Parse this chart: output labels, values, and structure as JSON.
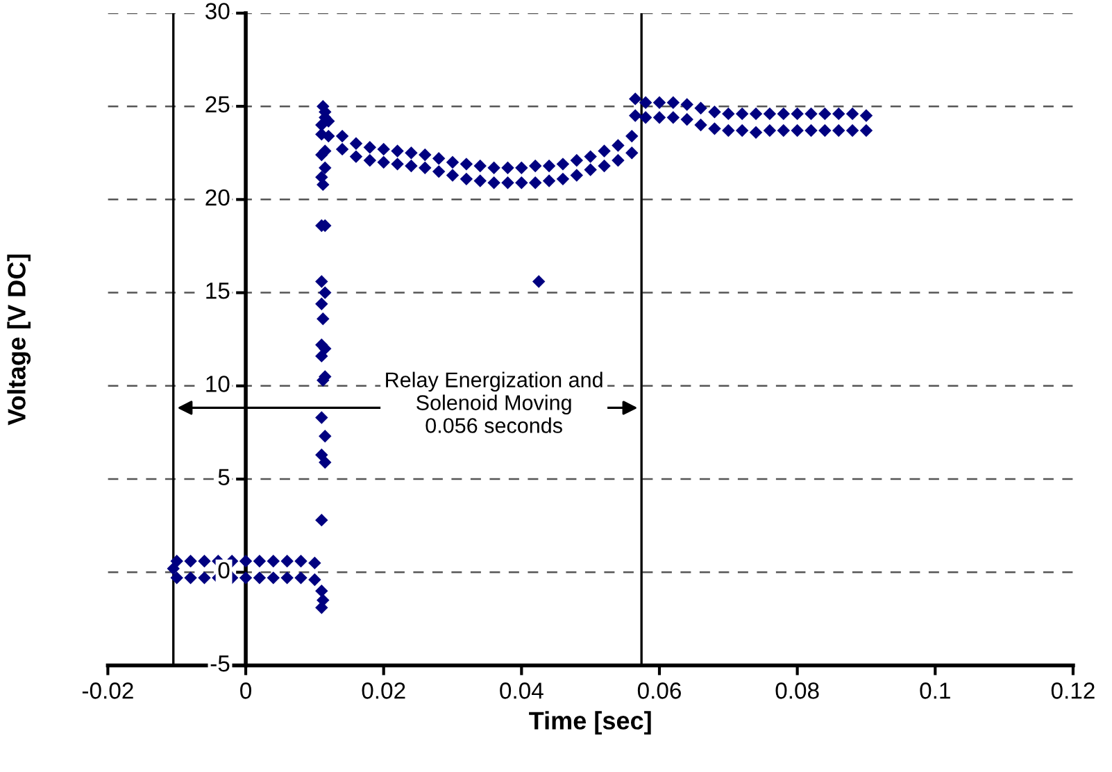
{
  "chart_data": {
    "type": "scatter",
    "xlabel": "Time [sec]",
    "ylabel": "Voltage [V DC]",
    "xlim": [
      -0.02,
      0.12
    ],
    "xticks": [
      -0.02,
      0,
      0.02,
      0.04,
      0.06,
      0.08,
      0.1,
      0.12
    ],
    "ylim": [
      -5,
      30
    ],
    "yticks": [
      -5,
      0,
      5,
      10,
      15,
      20,
      25,
      30
    ],
    "grid": "y",
    "marker": "diamond",
    "ref_lines": [
      {
        "axis": "x",
        "value": -0.0105,
        "color": "#000000"
      },
      {
        "axis": "x",
        "value": 0.0574,
        "color": "#000000"
      }
    ],
    "annotations": [
      "Relay Energization and\nSolenoid Moving\n0.056 seconds"
    ],
    "series": [
      {
        "color": "#000080",
        "x": [
          -0.0105,
          -0.01,
          -0.01,
          -0.008,
          -0.008,
          -0.006,
          -0.006,
          -0.004,
          -0.004,
          -0.002,
          -0.002,
          0,
          0,
          0.002,
          0.002,
          0.004,
          0.004,
          0.006,
          0.006,
          0.008,
          0.008,
          0.01,
          0.01,
          0.011,
          0.011,
          0.0112,
          0.011,
          0.0115,
          0.011,
          0.0115,
          0.011,
          0.0112,
          0.0115,
          0.011,
          0.0115,
          0.011,
          0.0112,
          0.011,
          0.0115,
          0.011,
          0.0115,
          0.011,
          0.0112,
          0.011,
          0.0115,
          0.011,
          0.0115,
          0.011,
          0.0115,
          0.0112,
          0.0115,
          0.011,
          0.012,
          0.012,
          0.014,
          0.014,
          0.016,
          0.016,
          0.018,
          0.018,
          0.02,
          0.02,
          0.022,
          0.022,
          0.024,
          0.024,
          0.026,
          0.026,
          0.028,
          0.028,
          0.03,
          0.03,
          0.032,
          0.032,
          0.034,
          0.034,
          0.036,
          0.036,
          0.038,
          0.038,
          0.04,
          0.04,
          0.0425,
          0.042,
          0.042,
          0.044,
          0.044,
          0.046,
          0.046,
          0.048,
          0.048,
          0.05,
          0.05,
          0.052,
          0.052,
          0.054,
          0.054,
          0.056,
          0.056,
          0.0565,
          0.0565,
          0.058,
          0.058,
          0.06,
          0.06,
          0.062,
          0.062,
          0.064,
          0.064,
          0.066,
          0.066,
          0.068,
          0.068,
          0.07,
          0.07,
          0.072,
          0.072,
          0.074,
          0.074,
          0.076,
          0.076,
          0.078,
          0.078,
          0.08,
          0.08,
          0.082,
          0.082,
          0.084,
          0.084,
          0.086,
          0.086,
          0.088,
          0.088,
          0.09,
          0.09
        ],
        "values": [
          0.2,
          0.6,
          -0.3,
          0.6,
          -0.3,
          0.6,
          -0.3,
          0.6,
          -0.3,
          0.6,
          -0.3,
          0.6,
          -0.3,
          0.6,
          -0.3,
          0.6,
          -0.3,
          0.6,
          -0.3,
          0.6,
          -0.3,
          0.5,
          -0.4,
          -1.0,
          -1.9,
          -1.5,
          2.8,
          5.9,
          6.3,
          7.3,
          8.3,
          10.3,
          10.5,
          11.6,
          12.0,
          12.2,
          13.6,
          14.4,
          15.0,
          15.6,
          18.6,
          18.6,
          20.8,
          21.2,
          21.7,
          22.4,
          22.6,
          24.0,
          24.7,
          25.0,
          24.4,
          23.5,
          24.2,
          23.4,
          23.4,
          22.7,
          23.0,
          22.3,
          22.8,
          22.1,
          22.7,
          22.0,
          22.6,
          21.9,
          22.5,
          21.8,
          22.4,
          21.7,
          22.2,
          21.5,
          22.0,
          21.3,
          21.9,
          21.1,
          21.8,
          21.0,
          21.7,
          20.9,
          21.7,
          20.9,
          21.7,
          20.9,
          15.6,
          21.8,
          20.9,
          21.8,
          21.0,
          21.9,
          21.1,
          22.1,
          21.3,
          22.3,
          21.6,
          22.6,
          21.8,
          22.9,
          22.1,
          23.4,
          22.5,
          25.4,
          24.5,
          25.2,
          24.4,
          25.2,
          24.4,
          25.2,
          24.4,
          25.1,
          24.3,
          24.9,
          24.0,
          24.7,
          23.8,
          24.6,
          23.7,
          24.6,
          23.7,
          24.6,
          23.6,
          24.6,
          23.7,
          24.6,
          23.7,
          24.6,
          23.7,
          24.6,
          23.7,
          24.6,
          23.7,
          24.6,
          23.7,
          24.6,
          23.7,
          24.5,
          23.7
        ]
      }
    ]
  }
}
